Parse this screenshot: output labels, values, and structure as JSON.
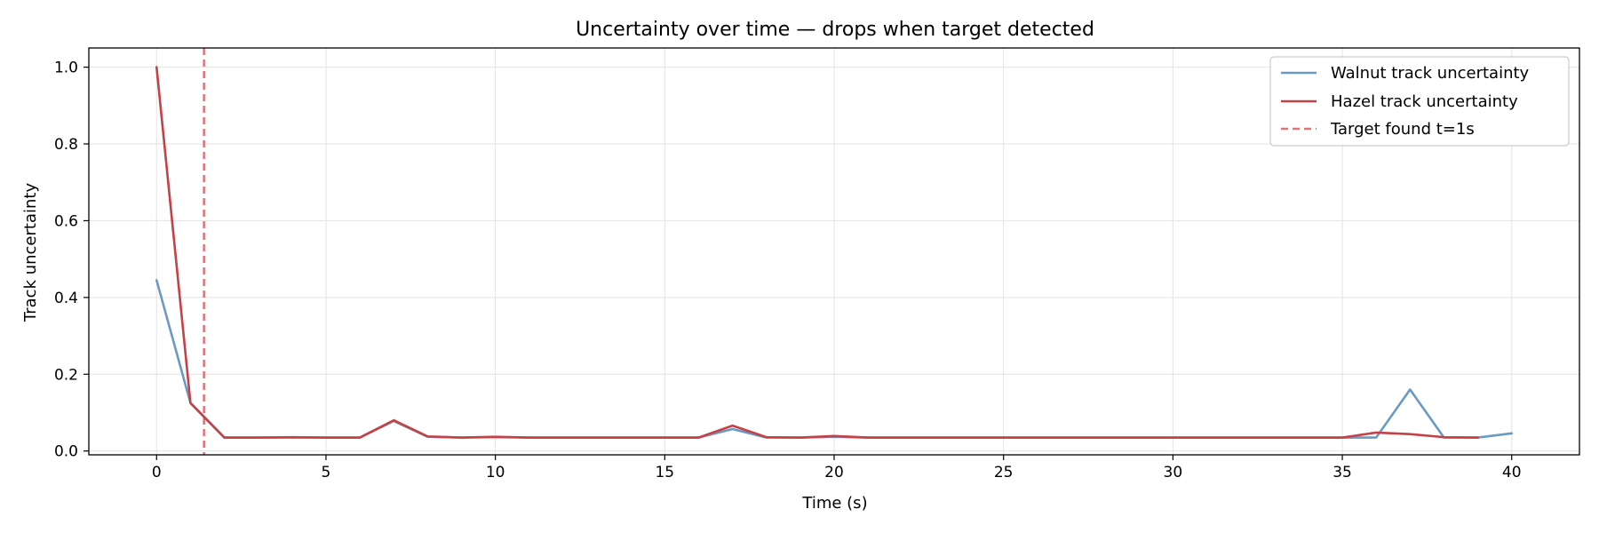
{
  "chart_data": {
    "type": "line",
    "title": "Uncertainty over time — drops when target detected",
    "xlabel": "Time (s)",
    "ylabel": "Track uncertainty",
    "xlim": [
      -2,
      42
    ],
    "ylim": [
      -0.01,
      1.05
    ],
    "xticks": [
      0,
      5,
      10,
      15,
      20,
      25,
      30,
      35,
      40
    ],
    "yticks": [
      0.0,
      0.2,
      0.4,
      0.6,
      0.8,
      1.0
    ],
    "xtick_labels": [
      "0",
      "5",
      "10",
      "15",
      "20",
      "25",
      "30",
      "35",
      "40"
    ],
    "ytick_labels": [
      "0.0",
      "0.2",
      "0.4",
      "0.6",
      "0.8",
      "1.0"
    ],
    "grid": true,
    "legend_position": "top-right",
    "series": [
      {
        "name": "Walnut track uncertainty",
        "color": "#6a9ac4",
        "style": "solid",
        "x": [
          0,
          1,
          2,
          3,
          4,
          5,
          6,
          7,
          8,
          9,
          10,
          11,
          12,
          13,
          14,
          15,
          16,
          17,
          18,
          19,
          20,
          21,
          22,
          23,
          24,
          25,
          26,
          27,
          28,
          29,
          30,
          31,
          32,
          33,
          34,
          35,
          36,
          37,
          38,
          39,
          40
        ],
        "y": [
          0.445,
          0.125,
          0.035,
          0.035,
          0.035,
          0.035,
          0.035,
          0.078,
          0.037,
          0.035,
          0.036,
          0.035,
          0.035,
          0.035,
          0.035,
          0.035,
          0.035,
          0.057,
          0.035,
          0.035,
          0.037,
          0.035,
          0.035,
          0.035,
          0.035,
          0.035,
          0.035,
          0.035,
          0.035,
          0.035,
          0.035,
          0.035,
          0.035,
          0.035,
          0.035,
          0.035,
          0.035,
          0.16,
          0.035,
          0.035,
          0.046
        ]
      },
      {
        "name": "Hazel track uncertainty",
        "color": "#c44146",
        "style": "solid",
        "x": [
          0,
          1,
          2,
          3,
          4,
          5,
          6,
          7,
          8,
          9,
          10,
          11,
          12,
          13,
          14,
          15,
          16,
          17,
          18,
          19,
          20,
          21,
          22,
          23,
          24,
          25,
          26,
          27,
          28,
          29,
          30,
          31,
          32,
          33,
          34,
          35,
          36,
          37,
          38,
          39
        ],
        "y": [
          1.0,
          0.125,
          0.035,
          0.035,
          0.036,
          0.035,
          0.035,
          0.08,
          0.038,
          0.035,
          0.037,
          0.035,
          0.035,
          0.035,
          0.035,
          0.035,
          0.035,
          0.066,
          0.036,
          0.035,
          0.039,
          0.035,
          0.035,
          0.035,
          0.035,
          0.035,
          0.035,
          0.035,
          0.035,
          0.035,
          0.035,
          0.035,
          0.035,
          0.035,
          0.035,
          0.035,
          0.048,
          0.044,
          0.036,
          0.035
        ]
      }
    ],
    "vline": {
      "name": "Target found t=1s",
      "x": 1.4,
      "color": "#e07377",
      "style": "dashed"
    }
  }
}
